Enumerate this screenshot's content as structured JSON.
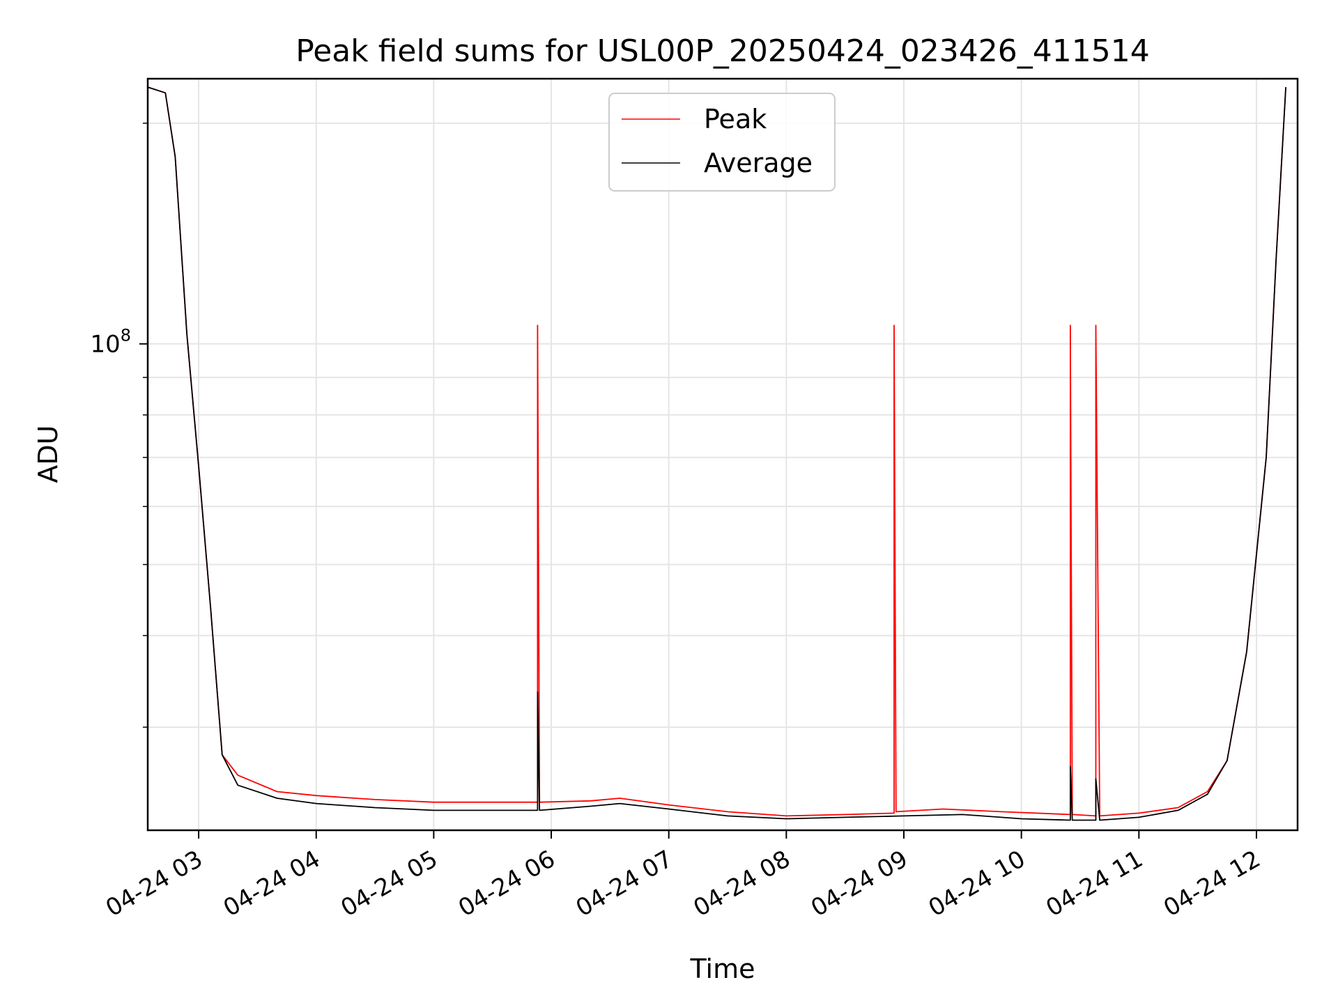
{
  "chart_data": {
    "type": "line",
    "title": "Peak field sums for USL00P_20250424_023426_411514",
    "xlabel": "Time",
    "ylabel": "ADU",
    "yscale": "log",
    "ylim": [
      21700000,
      230000000
    ],
    "xlim": [
      "2025-04-24 02:34",
      "2025-04-24 12:21"
    ],
    "x_ticks": [
      "04-24 03",
      "04-24 04",
      "04-24 05",
      "04-24 06",
      "04-24 07",
      "04-24 08",
      "04-24 09",
      "04-24 10",
      "04-24 11",
      "04-24 12"
    ],
    "y_ticks": [
      {
        "value": 100000000,
        "base": "10",
        "exp": "8"
      }
    ],
    "grid": true,
    "legend_position": "top-center",
    "colors": {
      "peak": "#ff0000",
      "average": "#000000"
    },
    "series": [
      {
        "name": "Peak",
        "color": "#ff0000",
        "x": [
          "2025-04-24 02:34",
          "2025-04-24 02:43",
          "2025-04-24 02:48",
          "2025-04-24 02:54",
          "2025-04-24 03:00",
          "2025-04-24 03:06",
          "2025-04-24 03:12",
          "2025-04-24 03:20",
          "2025-04-24 03:40",
          "2025-04-24 04:00",
          "2025-04-24 04:30",
          "2025-04-24 05:00",
          "2025-04-24 05:30",
          "2025-04-24 05:53",
          "2025-04-24 05:53",
          "2025-04-24 05:54",
          "2025-04-24 06:20",
          "2025-04-24 06:35",
          "2025-04-24 07:00",
          "2025-04-24 07:30",
          "2025-04-24 08:00",
          "2025-04-24 08:30",
          "2025-04-24 08:55",
          "2025-04-24 08:55",
          "2025-04-24 08:56",
          "2025-04-24 09:20",
          "2025-04-24 09:50",
          "2025-04-24 10:25",
          "2025-04-24 10:25",
          "2025-04-24 10:26",
          "2025-04-24 10:38",
          "2025-04-24 10:38",
          "2025-04-24 10:40",
          "2025-04-24 11:00",
          "2025-04-24 11:20",
          "2025-04-24 11:35",
          "2025-04-24 11:45",
          "2025-04-24 11:55",
          "2025-04-24 12:05",
          "2025-04-24 12:10",
          "2025-04-24 12:15"
        ],
        "values": [
          224000000,
          220000000,
          180000000,
          103000000,
          68000000,
          44000000,
          27500000,
          25800000,
          24500000,
          24200000,
          23900000,
          23700000,
          23700000,
          23700000,
          106000000,
          23700000,
          23800000,
          24000000,
          23500000,
          23000000,
          22700000,
          22800000,
          22900000,
          106000000,
          23000000,
          23200000,
          23000000,
          22800000,
          106000000,
          22800000,
          22700000,
          106000000,
          22700000,
          22900000,
          23300000,
          24500000,
          27000000,
          38000000,
          70000000,
          130000000,
          224000000
        ]
      },
      {
        "name": "Average",
        "color": "#000000",
        "x": [
          "2025-04-24 02:34",
          "2025-04-24 02:43",
          "2025-04-24 02:48",
          "2025-04-24 02:54",
          "2025-04-24 03:00",
          "2025-04-24 03:06",
          "2025-04-24 03:12",
          "2025-04-24 03:20",
          "2025-04-24 03:40",
          "2025-04-24 04:00",
          "2025-04-24 04:30",
          "2025-04-24 05:00",
          "2025-04-24 05:30",
          "2025-04-24 05:53",
          "2025-04-24 05:53",
          "2025-04-24 05:54",
          "2025-04-24 06:20",
          "2025-04-24 06:35",
          "2025-04-24 07:00",
          "2025-04-24 07:30",
          "2025-04-24 08:00",
          "2025-04-24 08:30",
          "2025-04-24 09:00",
          "2025-04-24 09:30",
          "2025-04-24 10:00",
          "2025-04-24 10:25",
          "2025-04-24 10:25",
          "2025-04-24 10:26",
          "2025-04-24 10:38",
          "2025-04-24 10:38",
          "2025-04-24 10:40",
          "2025-04-24 11:00",
          "2025-04-24 11:20",
          "2025-04-24 11:35",
          "2025-04-24 11:45",
          "2025-04-24 11:55",
          "2025-04-24 12:05",
          "2025-04-24 12:10",
          "2025-04-24 12:15"
        ],
        "values": [
          224000000,
          220000000,
          180000000,
          103000000,
          68000000,
          44000000,
          27500000,
          25000000,
          24000000,
          23600000,
          23300000,
          23100000,
          23100000,
          23100000,
          33500000,
          23100000,
          23400000,
          23600000,
          23200000,
          22700000,
          22500000,
          22600000,
          22700000,
          22800000,
          22500000,
          22400000,
          26500000,
          22400000,
          22400000,
          25500000,
          22400000,
          22600000,
          23100000,
          24300000,
          27000000,
          38000000,
          70000000,
          130000000,
          224000000
        ]
      }
    ]
  }
}
